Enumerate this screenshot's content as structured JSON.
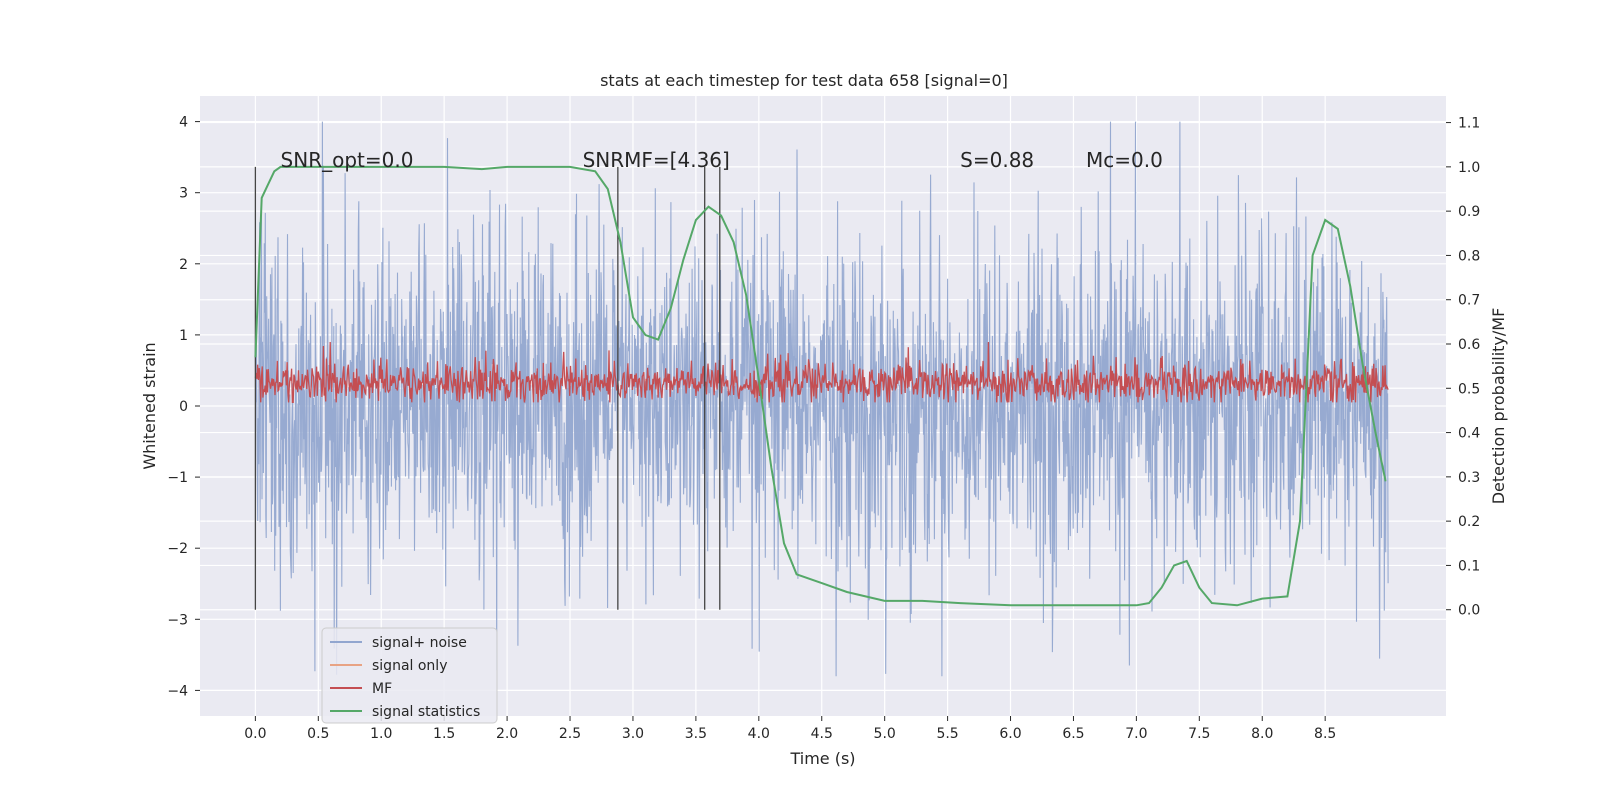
{
  "chart_data": {
    "type": "line",
    "title": "stats at each timestep for test data 658 [signal=0]",
    "xlabel": "Time (s)",
    "ylabel_left": "Whitened strain",
    "ylabel_right": "Detection probability/MF",
    "xlim": [
      -0.44,
      9.46
    ],
    "ylim_left": [
      -4.36,
      4.36
    ],
    "ylim_right": [
      -0.24,
      1.16
    ],
    "xticks": [
      "0.0",
      "0.5",
      "1.0",
      "1.5",
      "2.0",
      "2.5",
      "3.0",
      "3.5",
      "4.0",
      "4.5",
      "5.0",
      "5.5",
      "6.0",
      "6.5",
      "7.0",
      "7.5",
      "8.0",
      "8.5"
    ],
    "xtick_values": [
      0,
      0.5,
      1,
      1.5,
      2,
      2.5,
      3,
      3.5,
      4,
      4.5,
      5,
      5.5,
      6,
      6.5,
      7,
      7.5,
      8,
      8.5
    ],
    "yticks_left": [
      "4",
      "3",
      "2",
      "1",
      "0",
      "−1",
      "−2",
      "−3",
      "−4"
    ],
    "ytick_values_left": [
      4,
      3,
      2,
      1,
      0,
      -1,
      -2,
      -3,
      -4
    ],
    "yticks_right": [
      "1.1",
      "1.0",
      "0.9",
      "0.8",
      "0.7",
      "0.6",
      "0.5",
      "0.4",
      "0.3",
      "0.2",
      "0.1",
      "0.0"
    ],
    "ytick_values_right": [
      1.1,
      1.0,
      0.9,
      0.8,
      0.7,
      0.6,
      0.5,
      0.4,
      0.3,
      0.2,
      0.1,
      0.0
    ],
    "annotations": [
      {
        "text": "SNR_opt=0.0",
        "x": 0.2,
        "y": 1.0
      },
      {
        "text": "SNRMF=[4.36]",
        "x": 2.6,
        "y": 1.0
      },
      {
        "text": "S=0.88",
        "x": 5.6,
        "y": 1.0
      },
      {
        "text": "Mc=0.0",
        "x": 6.6,
        "y": 1.0
      }
    ],
    "vertical_markers_seconds": [
      0.0,
      2.88,
      3.57,
      3.69
    ],
    "legend": [
      {
        "label": "signal+ noise",
        "color": "#92a6cf"
      },
      {
        "label": "signal only",
        "color": "#e8a384"
      },
      {
        "label": "MF",
        "color": "#c44e52"
      },
      {
        "label": "signal statistics",
        "color": "#55a868"
      }
    ],
    "series": [
      {
        "name": "signal+ noise",
        "axis": "left",
        "color": "#92a6cf",
        "description": "dense whitened noise trace from 0.0 s to 9.0 s, amplitude roughly -3.8 to 4.0",
        "x_range": [
          0.0,
          9.0
        ],
        "amplitude_range": [
          -3.8,
          4.0
        ]
      },
      {
        "name": "MF",
        "axis": "left",
        "color": "#c44e52",
        "description": "matched filter output fluctuating between about 0.05 and 0.9",
        "x_range": [
          0.0,
          9.0
        ],
        "amplitude_range": [
          0.05,
          0.9
        ]
      },
      {
        "name": "signal statistics",
        "axis": "right",
        "color": "#55a868",
        "x": [
          0.0,
          0.05,
          0.1,
          0.15,
          0.2,
          0.3,
          0.5,
          1.0,
          1.5,
          1.8,
          2.0,
          2.5,
          2.7,
          2.8,
          2.9,
          3.0,
          3.1,
          3.2,
          3.3,
          3.4,
          3.5,
          3.6,
          3.7,
          3.8,
          3.9,
          4.0,
          4.1,
          4.2,
          4.3,
          4.5,
          4.7,
          5.0,
          5.3,
          5.6,
          6.0,
          6.3,
          6.5,
          7.0,
          7.1,
          7.2,
          7.3,
          7.4,
          7.5,
          7.6,
          7.8,
          8.0,
          8.2,
          8.3,
          8.35,
          8.4,
          8.5,
          8.6,
          8.7,
          8.8,
          8.9,
          8.98
        ],
        "y": [
          0.57,
          0.93,
          0.96,
          0.99,
          1.0,
          1.0,
          1.0,
          1.0,
          1.0,
          0.995,
          1.0,
          1.0,
          0.99,
          0.95,
          0.83,
          0.66,
          0.62,
          0.61,
          0.68,
          0.79,
          0.88,
          0.91,
          0.89,
          0.83,
          0.71,
          0.52,
          0.32,
          0.15,
          0.08,
          0.06,
          0.04,
          0.02,
          0.02,
          0.015,
          0.01,
          0.01,
          0.01,
          0.01,
          0.015,
          0.05,
          0.1,
          0.11,
          0.05,
          0.015,
          0.01,
          0.025,
          0.03,
          0.2,
          0.5,
          0.8,
          0.88,
          0.86,
          0.73,
          0.55,
          0.4,
          0.29
        ]
      }
    ]
  }
}
